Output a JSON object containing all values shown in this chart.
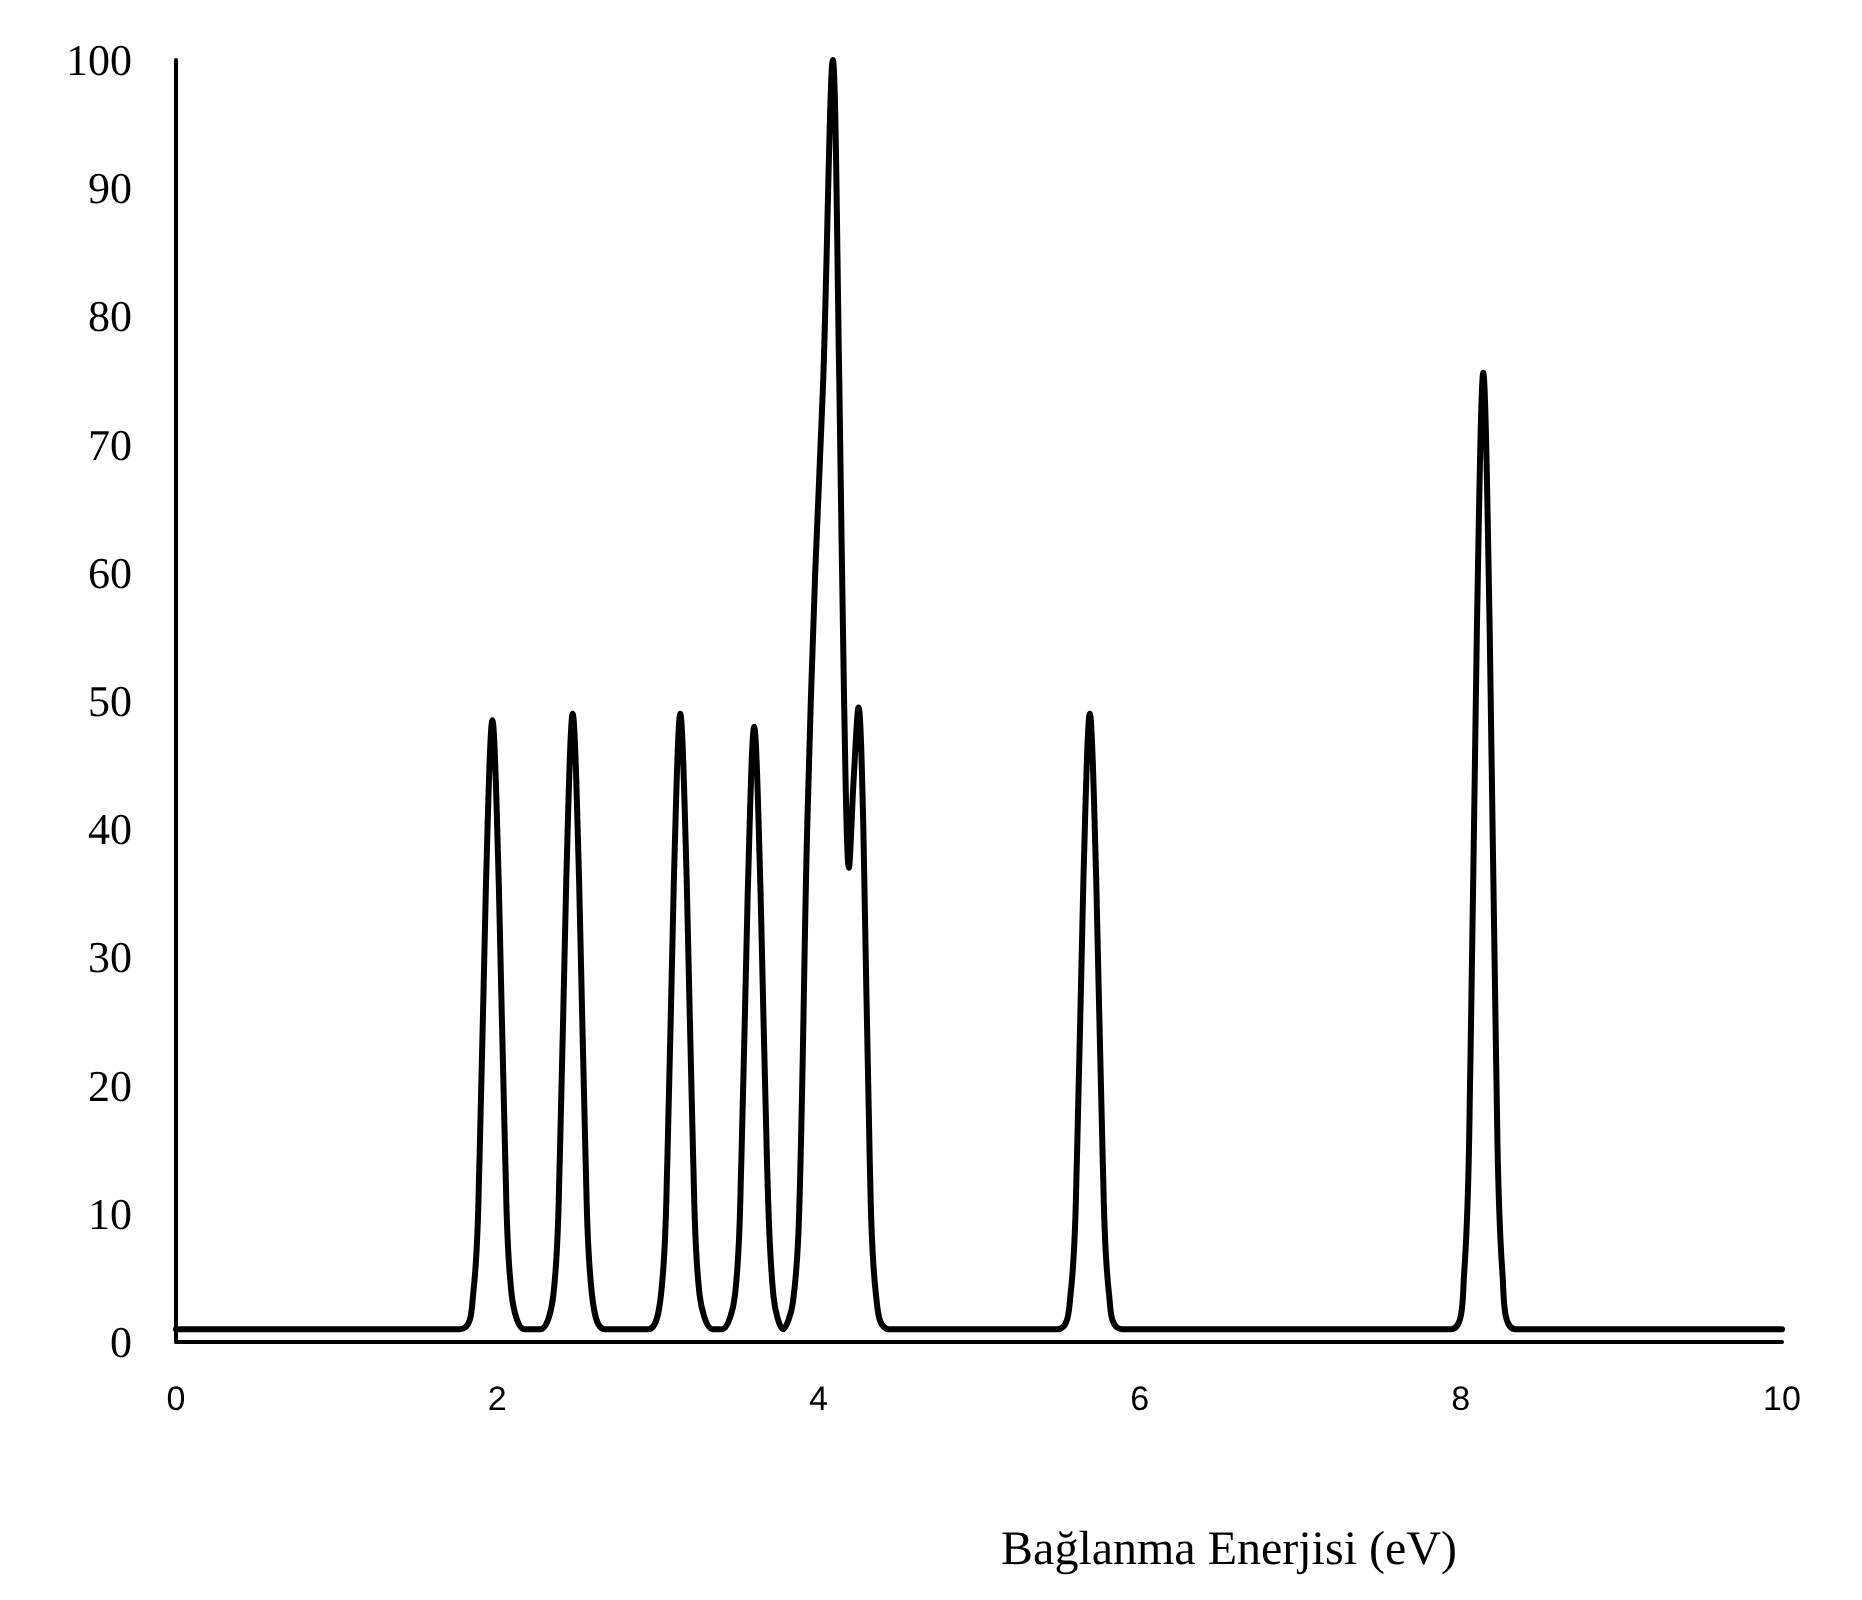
{
  "chart_data": {
    "type": "line",
    "xlabel": "Bağlanma Enerjisi (eV)",
    "xlim": [
      0,
      10
    ],
    "xticks": [
      0,
      2,
      4,
      6,
      8,
      10
    ],
    "ylim": [
      0,
      100
    ],
    "yticks": [
      0,
      10,
      20,
      30,
      40,
      50,
      60,
      70,
      80,
      90,
      100
    ],
    "marker": "none",
    "line_style": "solid",
    "series": [
      {
        "color": "#000000",
        "x": [
          0,
          1.77,
          1.85,
          1.89,
          1.93,
          1.97,
          2.01,
          2.05,
          2.09,
          2.17,
          2.27,
          2.35,
          2.39,
          2.43,
          2.47,
          2.51,
          2.55,
          2.59,
          2.67,
          2.94,
          3.02,
          3.06,
          3.1,
          3.14,
          3.18,
          3.22,
          3.26,
          3.34,
          3.4,
          3.48,
          3.52,
          3.56,
          3.6,
          3.64,
          3.68,
          3.72,
          3.78,
          3.84,
          3.88,
          3.93,
          3.98,
          4.03,
          4.09,
          4.13,
          4.16,
          4.19,
          4.22,
          4.25,
          4.28,
          4.32,
          4.36,
          4.44,
          5.49,
          5.57,
          5.61,
          5.65,
          5.69,
          5.73,
          5.77,
          5.81,
          5.89,
          7.94,
          8.02,
          8.06,
          8.1,
          8.14,
          8.18,
          8.22,
          8.26,
          8.34,
          10
        ],
        "values": [
          1,
          1,
          3.7,
          14.3,
          35.7,
          48.5,
          35.7,
          14.3,
          3.7,
          1,
          1,
          3.7,
          14.4,
          36,
          49,
          36,
          14.4,
          3.7,
          1,
          1,
          3.7,
          14.4,
          36,
          49,
          36,
          14.4,
          3.7,
          1,
          1,
          3.6,
          14,
          35,
          48,
          35,
          14,
          3.6,
          1,
          3,
          10,
          40,
          60,
          75,
          100,
          75,
          50,
          37,
          44,
          49.5,
          40,
          14,
          3.5,
          1,
          1,
          3.7,
          14.4,
          36,
          49,
          36,
          14.4,
          3.7,
          1,
          1,
          5.2,
          21.9,
          55.5,
          75.6,
          55.5,
          21.9,
          5.2,
          1,
          1
        ]
      }
    ]
  }
}
